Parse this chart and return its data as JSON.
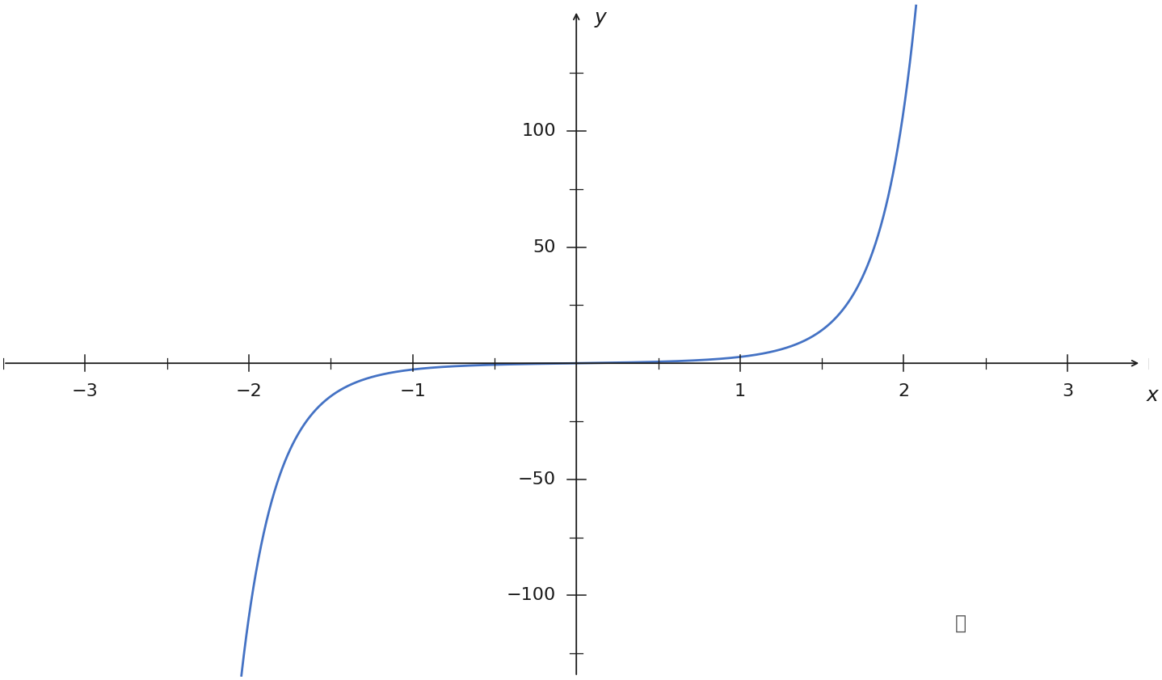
{
  "title": "",
  "xlabel": "x",
  "ylabel": "y",
  "xlim": [
    -3.5,
    3.5
  ],
  "ylim": [
    -135,
    155
  ],
  "x_ticks": [
    -3,
    -2,
    -1,
    1,
    2,
    3
  ],
  "y_ticks": [
    -100,
    -50,
    50,
    100
  ],
  "curve_color": "#4472c4",
  "curve_linewidth": 2.0,
  "x_start": -2.2,
  "x_end": 2.2,
  "background_color": "#ffffff",
  "axis_color": "#1a1a1a",
  "tick_label_fontsize": 16,
  "axis_label_fontsize": 18,
  "info_x": 2.35,
  "info_y": -112
}
